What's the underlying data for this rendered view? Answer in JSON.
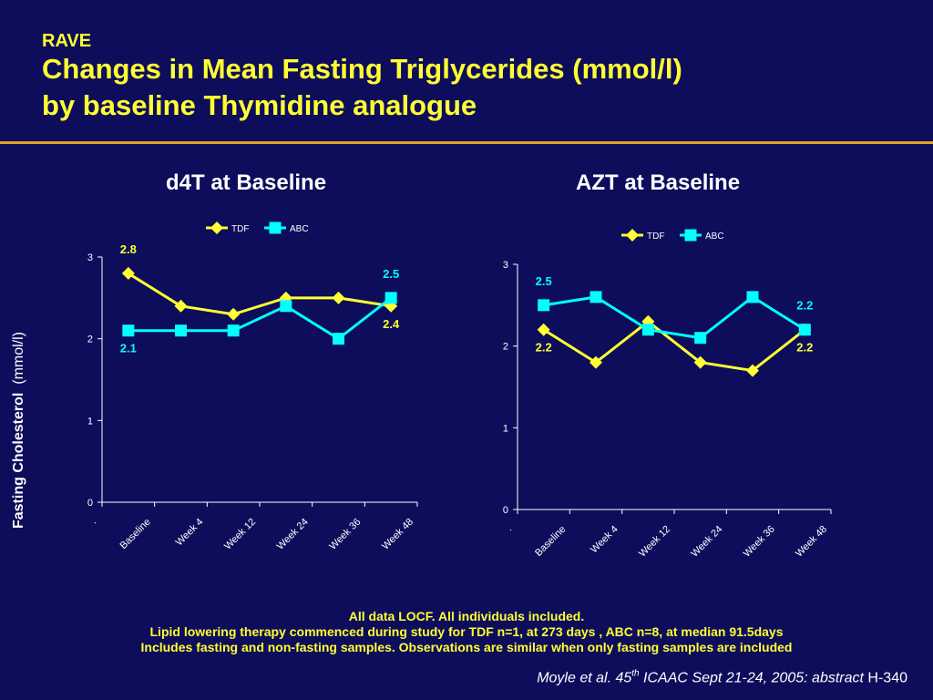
{
  "slide": {
    "kicker": "RAVE",
    "title_line1": "Changes in Mean Fasting Triglycerides (mmol/l)",
    "title_line2": "by baseline Thymidine analogue",
    "ylabel_bold": "Fasting Cholesterol",
    "ylabel_unit": "(mmol/l)",
    "footnotes": [
      "All data LOCF. All individuals included.",
      "Lipid lowering therapy commenced during study for  TDF n=1, at 273 days ,  ABC n=8, at median 91.5days",
      "Includes fasting and non-fasting samples. Observations are similar when only fasting samples are included"
    ],
    "citation_italic": "Moyle et al. 45",
    "citation_sup": "th",
    "citation_italic2": " ICAAC Sept 21-24, 2005: abstract",
    "citation_tail": " H-340"
  },
  "colors": {
    "tdf": "#ffff33",
    "abc": "#00ffff",
    "axis": "#ffffff",
    "accent": "#e0a526"
  },
  "chart_data": [
    {
      "type": "line",
      "title": "d4T at Baseline",
      "categories": [
        "Baseline",
        "Week 4",
        "Week 12",
        "Week 24",
        "Week 36",
        "Week 48"
      ],
      "x_leading_tick": ".",
      "ylim": [
        0,
        3
      ],
      "yticks": [
        0,
        1,
        2,
        3
      ],
      "legend": "top-center",
      "series": [
        {
          "name": "TDF",
          "marker": "diamond",
          "values": [
            2.8,
            2.4,
            2.3,
            2.5,
            2.5,
            2.4
          ]
        },
        {
          "name": "ABC",
          "marker": "square",
          "values": [
            2.1,
            2.1,
            2.1,
            2.4,
            2.0,
            2.5
          ]
        }
      ],
      "annotations": [
        {
          "series": "TDF",
          "index": 0,
          "text": "2.8",
          "pos": "above"
        },
        {
          "series": "ABC",
          "index": 0,
          "text": "2.1",
          "pos": "below"
        },
        {
          "series": "ABC",
          "index": 5,
          "text": "2.5",
          "pos": "above"
        },
        {
          "series": "TDF",
          "index": 5,
          "text": "2.4",
          "pos": "below"
        }
      ]
    },
    {
      "type": "line",
      "title": "AZT at Baseline",
      "categories": [
        "Baseline",
        "Week 4",
        "Week 12",
        "Week 24",
        "Week 36",
        "Week 48"
      ],
      "x_leading_tick": ".",
      "ylim": [
        0,
        3
      ],
      "yticks": [
        0,
        1,
        2,
        3
      ],
      "legend": "top-center",
      "series": [
        {
          "name": "TDF",
          "marker": "diamond",
          "values": [
            2.2,
            1.8,
            2.3,
            1.8,
            1.7,
            2.2
          ]
        },
        {
          "name": "ABC",
          "marker": "square",
          "values": [
            2.5,
            2.6,
            2.2,
            2.1,
            2.6,
            2.2
          ]
        }
      ],
      "annotations": [
        {
          "series": "ABC",
          "index": 0,
          "text": "2.5",
          "pos": "above"
        },
        {
          "series": "TDF",
          "index": 0,
          "text": "2.2",
          "pos": "below"
        },
        {
          "series": "ABC",
          "index": 5,
          "text": "2.2",
          "pos": "above"
        },
        {
          "series": "TDF",
          "index": 5,
          "text": "2.2",
          "pos": "below"
        }
      ]
    }
  ]
}
